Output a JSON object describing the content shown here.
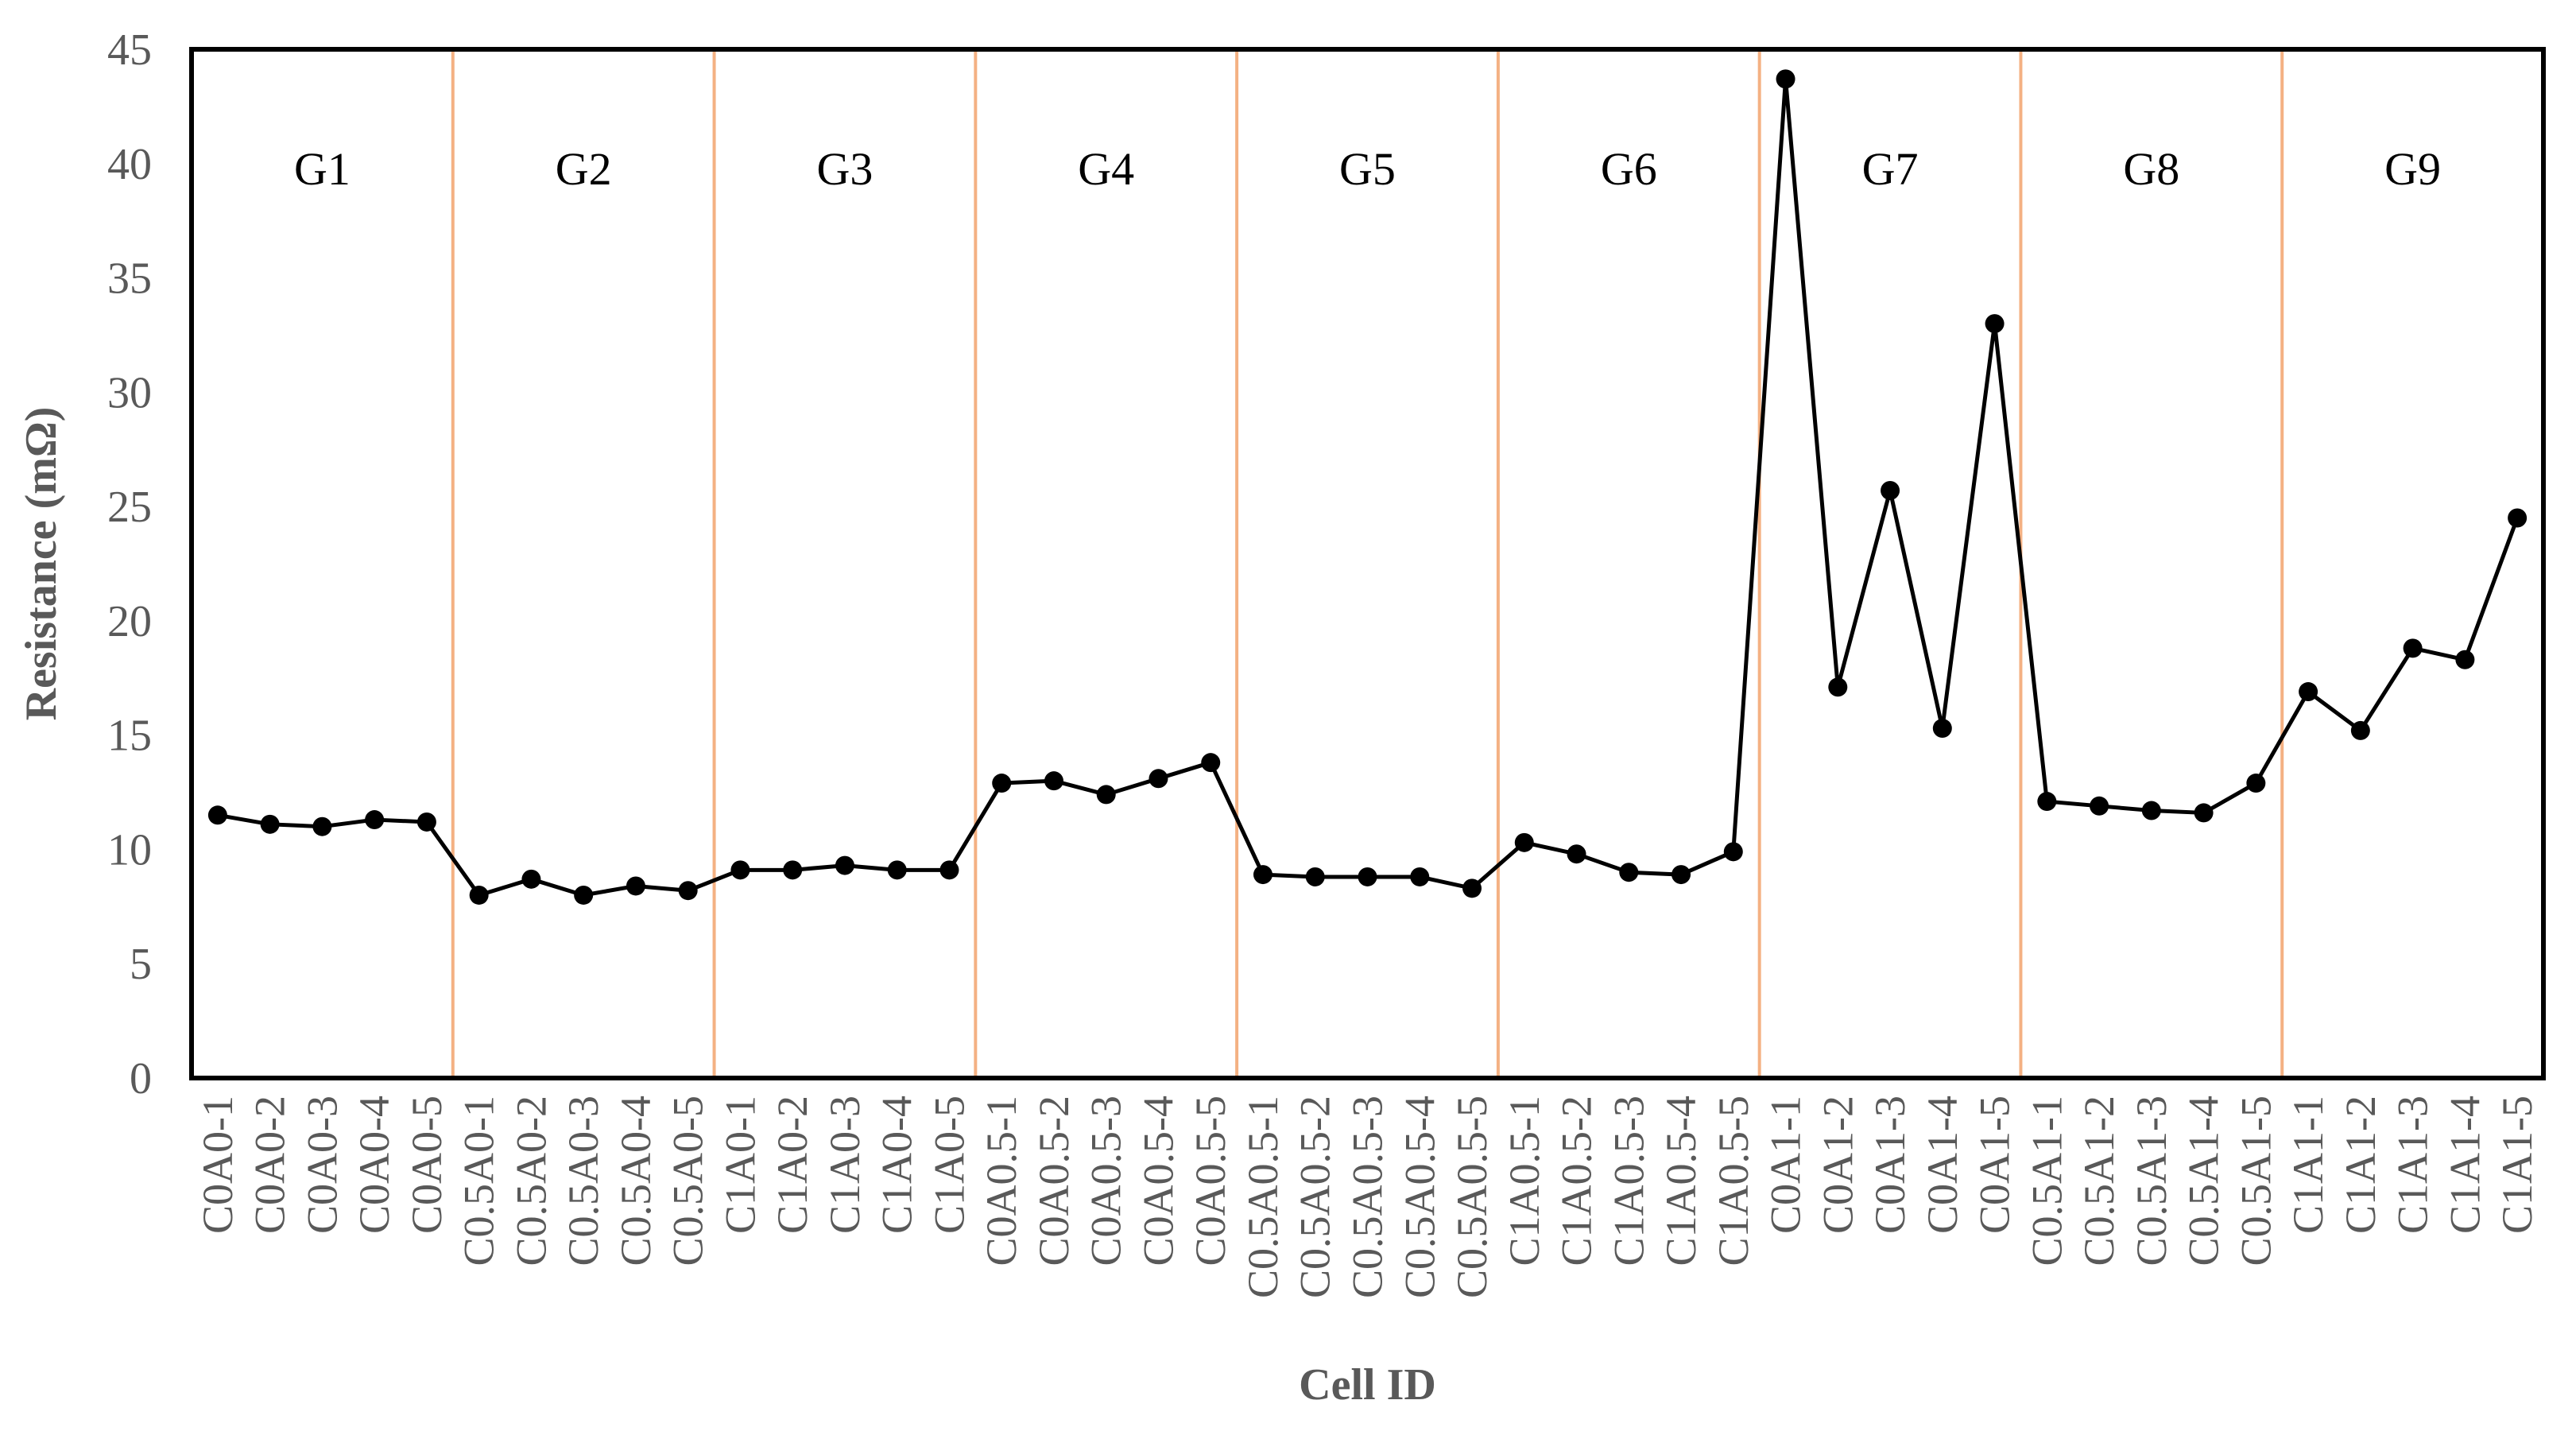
{
  "chart_data": {
    "type": "line",
    "title": "",
    "xlabel": "Cell ID",
    "ylabel": "Resistance (mΩ)",
    "ylim": [
      0,
      45
    ],
    "yticks": [
      0,
      5,
      10,
      15,
      20,
      25,
      30,
      35,
      40,
      45
    ],
    "grid": false,
    "categories": [
      "C0A0-1",
      "C0A0-2",
      "C0A0-3",
      "C0A0-4",
      "C0A0-5",
      "C0.5A0-1",
      "C0.5A0-2",
      "C0.5A0-3",
      "C0.5A0-4",
      "C0.5A0-5",
      "C1A0-1",
      "C1A0-2",
      "C1A0-3",
      "C1A0-4",
      "C1A0-5",
      "C0A0.5-1",
      "C0A0.5-2",
      "C0A0.5-3",
      "C0A0.5-4",
      "C0A0.5-5",
      "C0.5A0.5-1",
      "C0.5A0.5-2",
      "C0.5A0.5-3",
      "C0.5A0.5-4",
      "C0.5A0.5-5",
      "C1A0.5-1",
      "C1A0.5-2",
      "C1A0.5-3",
      "C1A0.5-4",
      "C1A0.5-5",
      "C0A1-1",
      "C0A1-2",
      "C0A1-3",
      "C0A1-4",
      "C0A1-5",
      "C0.5A1-1",
      "C0.5A1-2",
      "C0.5A1-3",
      "C0.5A1-4",
      "C0.5A1-5",
      "C1A1-1",
      "C1A1-2",
      "C1A1-3",
      "C1A1-4",
      "C1A1-5"
    ],
    "series": [
      {
        "values": [
          11.5,
          11.1,
          11.0,
          11.3,
          11.2,
          8.0,
          8.7,
          8.0,
          8.4,
          8.2,
          9.1,
          9.1,
          9.3,
          9.1,
          9.1,
          12.9,
          13.0,
          12.4,
          13.1,
          13.8,
          8.9,
          8.8,
          8.8,
          8.8,
          8.3,
          10.3,
          9.8,
          9.0,
          8.9,
          9.9,
          43.7,
          17.1,
          25.7,
          15.3,
          33.0,
          12.1,
          11.9,
          11.7,
          11.6,
          12.9,
          16.9,
          15.2,
          18.8,
          18.3,
          24.5
        ]
      }
    ],
    "groups": [
      {
        "label": "G1",
        "start": 0,
        "end": 4
      },
      {
        "label": "G2",
        "start": 5,
        "end": 9
      },
      {
        "label": "G3",
        "start": 10,
        "end": 14
      },
      {
        "label": "G4",
        "start": 15,
        "end": 19
      },
      {
        "label": "G5",
        "start": 20,
        "end": 24
      },
      {
        "label": "G6",
        "start": 25,
        "end": 29
      },
      {
        "label": "G7",
        "start": 30,
        "end": 34
      },
      {
        "label": "G8",
        "start": 35,
        "end": 39
      },
      {
        "label": "G9",
        "start": 40,
        "end": 44
      }
    ],
    "colors": {
      "line": "#000000",
      "marker": "#000000",
      "divider": "#F4B183",
      "axis_text": "#595959",
      "group_text": "#000000"
    }
  }
}
